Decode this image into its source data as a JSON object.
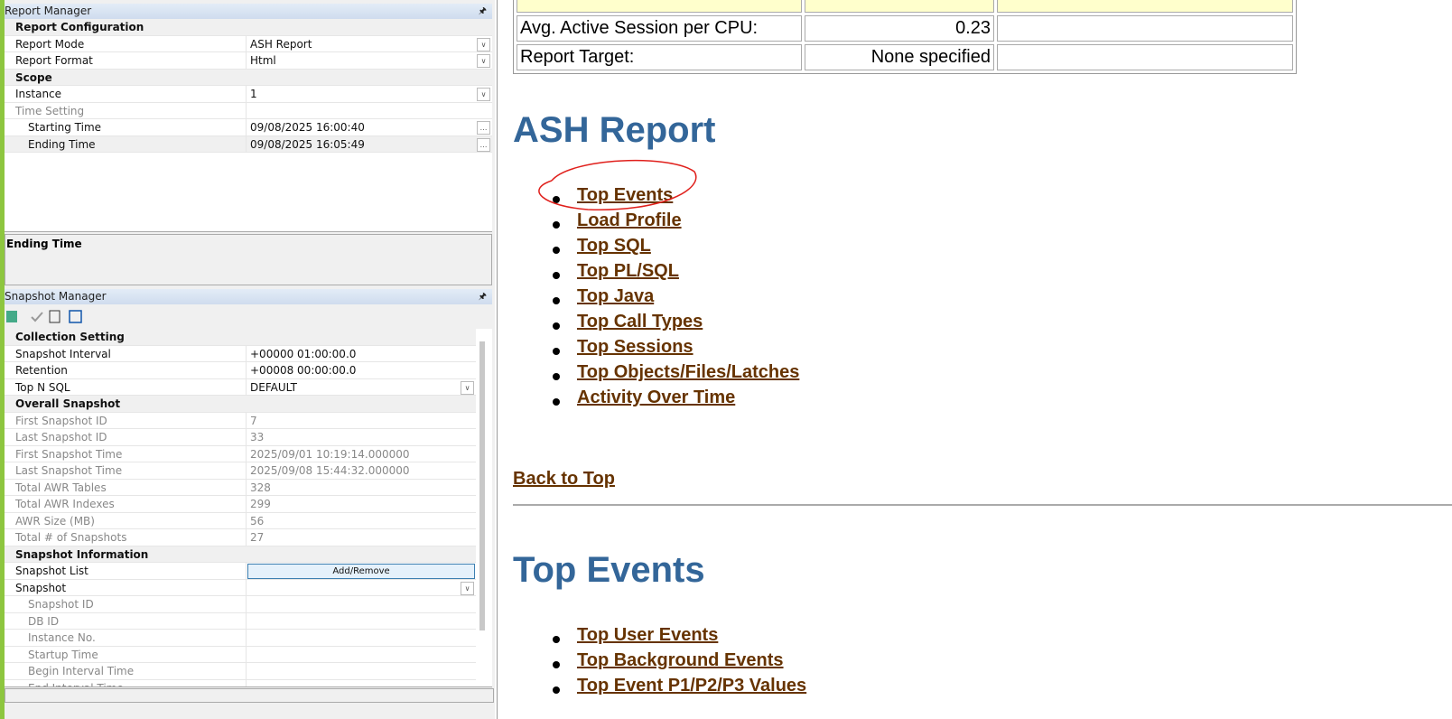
{
  "report_manager": {
    "title": "Report Manager",
    "rows": [
      {
        "label": "Report Configuration",
        "kind": "category"
      },
      {
        "label": "Report Mode",
        "value": "ASH Report",
        "control": "dropdown"
      },
      {
        "label": "Report Format",
        "value": "Html",
        "control": "dropdown"
      },
      {
        "label": "Scope",
        "kind": "category"
      },
      {
        "label": "Instance",
        "value": "1",
        "control": "dropdown"
      },
      {
        "label": "Time Setting",
        "kind": "disabled"
      },
      {
        "label": "Starting Time",
        "value": "09/08/2025 16:00:40",
        "control": "ellipsis",
        "indent": true
      },
      {
        "label": "Ending Time",
        "value": "09/08/2025 16:05:49",
        "control": "ellipsis",
        "indent": true,
        "selected": true
      }
    ]
  },
  "description": {
    "title": "Ending Time"
  },
  "snapshot_manager": {
    "title": "Snapshot Manager",
    "rows": [
      {
        "label": "Collection Setting",
        "kind": "category"
      },
      {
        "label": "Snapshot Interval",
        "value": "+00000 01:00:00.0"
      },
      {
        "label": "Retention",
        "value": "+00008 00:00:00.0"
      },
      {
        "label": "Top N SQL",
        "value": "DEFAULT",
        "control": "dropdown"
      },
      {
        "label": "Overall Snapshot",
        "kind": "category"
      },
      {
        "label": "First Snapshot ID",
        "value": "7",
        "kind": "disabled"
      },
      {
        "label": "Last Snapshot ID",
        "value": "33",
        "kind": "disabled"
      },
      {
        "label": "First Snapshot Time",
        "value": "2025/09/01 10:19:14.000000",
        "kind": "disabled"
      },
      {
        "label": "Last Snapshot Time",
        "value": "2025/09/08 15:44:32.000000",
        "kind": "disabled"
      },
      {
        "label": "Total AWR Tables",
        "value": "328",
        "kind": "disabled"
      },
      {
        "label": "Total AWR Indexes",
        "value": "299",
        "kind": "disabled"
      },
      {
        "label": "AWR Size (MB)",
        "value": "56",
        "kind": "disabled"
      },
      {
        "label": "Total # of Snapshots",
        "value": "27",
        "kind": "disabled"
      },
      {
        "label": "Snapshot Information",
        "kind": "category"
      },
      {
        "label": "Snapshot List",
        "value": "Add/Remove",
        "control": "button"
      },
      {
        "label": "Snapshot",
        "control": "dropdown"
      },
      {
        "label": "Snapshot ID",
        "kind": "disabled",
        "indent": true
      },
      {
        "label": "DB ID",
        "kind": "disabled",
        "indent": true
      },
      {
        "label": "Instance No.",
        "kind": "disabled",
        "indent": true
      },
      {
        "label": "Startup Time",
        "kind": "disabled",
        "indent": true
      },
      {
        "label": "Begin Interval Time",
        "kind": "disabled",
        "indent": true
      },
      {
        "label": "End Interval Time",
        "kind": "disabled",
        "indent": true
      }
    ]
  },
  "report": {
    "summary_rows": [
      {
        "label": "Avg. Active Session per CPU:",
        "value": "0.23"
      },
      {
        "label": "Report Target:",
        "value": "None specified"
      }
    ],
    "heading": "ASH Report",
    "links": [
      "Top Events",
      "Load Profile",
      "Top SQL",
      "Top PL/SQL",
      "Top Java",
      "Top Call Types",
      "Top Sessions",
      "Top Objects/Files/Latches",
      "Activity Over Time"
    ],
    "back_link": "Back to Top",
    "section_heading": "Top Events",
    "section_links": [
      "Top User Events",
      "Top Background Events",
      "Top Event P1/P2/P3 Values"
    ]
  }
}
